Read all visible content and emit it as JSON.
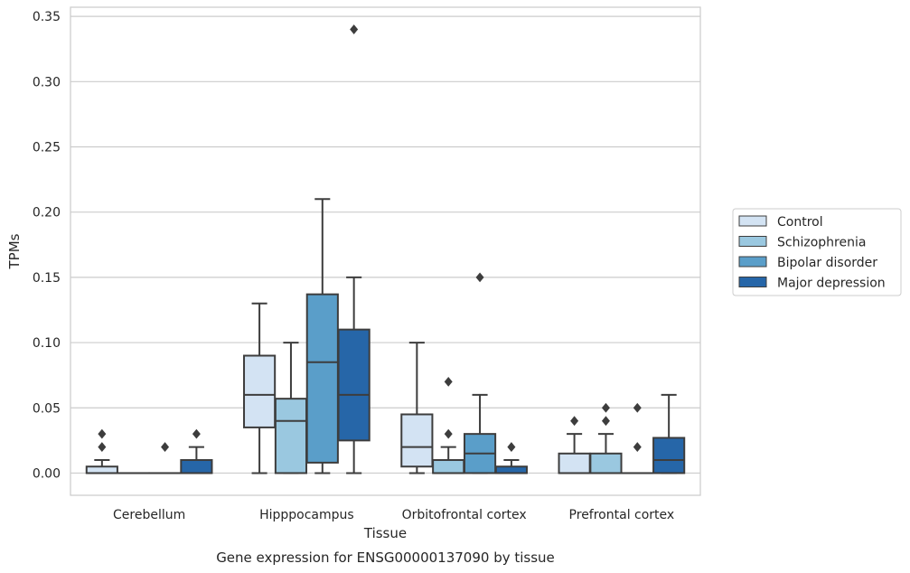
{
  "chart_data": {
    "type": "boxplot",
    "title": "Gene expression for ENSG00000137090 by tissue",
    "xlabel": "Tissue",
    "ylabel": "TPMs",
    "ylim": [
      -0.017,
      0.357
    ],
    "yticks": [
      "0.00",
      "0.05",
      "0.10",
      "0.15",
      "0.20",
      "0.25",
      "0.30",
      "0.35"
    ],
    "grid": "horizontal",
    "legend_position": "right",
    "categories": [
      "Cerebellum",
      "Hipppocampus",
      "Orbitofrontal cortex",
      "Prefrontal cortex"
    ],
    "series": [
      {
        "name": "Control",
        "color": "#d3e3f3",
        "boxes": [
          {
            "whisker_low": 0.0,
            "q1": 0.0,
            "median": 0.0,
            "q3": 0.005,
            "whisker_high": 0.01,
            "outliers": [
              0.02,
              0.03
            ]
          },
          {
            "whisker_low": 0.0,
            "q1": 0.035,
            "median": 0.06,
            "q3": 0.09,
            "whisker_high": 0.13,
            "outliers": []
          },
          {
            "whisker_low": 0.0,
            "q1": 0.005,
            "median": 0.02,
            "q3": 0.045,
            "whisker_high": 0.1,
            "outliers": []
          },
          {
            "whisker_low": 0.0,
            "q1": 0.0,
            "median": 0.0,
            "q3": 0.015,
            "whisker_high": 0.03,
            "outliers": [
              0.04
            ]
          }
        ]
      },
      {
        "name": "Schizophrenia",
        "color": "#9ac8e0",
        "boxes": [
          {
            "whisker_low": 0.0,
            "q1": 0.0,
            "median": 0.0,
            "q3": 0.0,
            "whisker_high": 0.0,
            "outliers": []
          },
          {
            "whisker_low": 0.0,
            "q1": 0.0,
            "median": 0.04,
            "q3": 0.057,
            "whisker_high": 0.1,
            "outliers": []
          },
          {
            "whisker_low": 0.0,
            "q1": 0.0,
            "median": 0.0,
            "q3": 0.01,
            "whisker_high": 0.02,
            "outliers": [
              0.03,
              0.07
            ]
          },
          {
            "whisker_low": 0.0,
            "q1": 0.0,
            "median": 0.0,
            "q3": 0.015,
            "whisker_high": 0.03,
            "outliers": [
              0.04,
              0.05
            ]
          }
        ]
      },
      {
        "name": "Bipolar disorder",
        "color": "#5a9ec9",
        "boxes": [
          {
            "whisker_low": 0.0,
            "q1": 0.0,
            "median": 0.0,
            "q3": 0.0,
            "whisker_high": 0.0,
            "outliers": [
              0.02
            ]
          },
          {
            "whisker_low": 0.0,
            "q1": 0.008,
            "median": 0.085,
            "q3": 0.137,
            "whisker_high": 0.21,
            "outliers": []
          },
          {
            "whisker_low": 0.0,
            "q1": 0.0,
            "median": 0.015,
            "q3": 0.03,
            "whisker_high": 0.06,
            "outliers": [
              0.15
            ]
          },
          {
            "whisker_low": 0.0,
            "q1": 0.0,
            "median": 0.0,
            "q3": 0.0,
            "whisker_high": 0.0,
            "outliers": [
              0.02,
              0.05
            ]
          }
        ]
      },
      {
        "name": "Major depression",
        "color": "#2666a8",
        "boxes": [
          {
            "whisker_low": 0.0,
            "q1": 0.0,
            "median": 0.0,
            "q3": 0.01,
            "whisker_high": 0.02,
            "outliers": [
              0.03
            ]
          },
          {
            "whisker_low": 0.0,
            "q1": 0.025,
            "median": 0.06,
            "q3": 0.11,
            "whisker_high": 0.15,
            "outliers": [
              0.34
            ]
          },
          {
            "whisker_low": 0.0,
            "q1": 0.0,
            "median": 0.0,
            "q3": 0.005,
            "whisker_high": 0.01,
            "outliers": [
              0.02
            ]
          },
          {
            "whisker_low": 0.0,
            "q1": 0.0,
            "median": 0.01,
            "q3": 0.027,
            "whisker_high": 0.06,
            "outliers": []
          }
        ]
      }
    ]
  }
}
